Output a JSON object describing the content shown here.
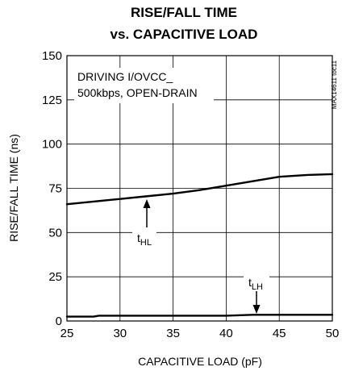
{
  "chart_data": {
    "type": "line",
    "title": "RISE/FALL TIME",
    "subtitle": "vs. CAPACITIVE LOAD",
    "xlabel": "CAPACITIVE LOAD (pF)",
    "ylabel": "RISE/FALL TIME (ns)",
    "xlim": [
      25,
      50
    ],
    "ylim": [
      0,
      150
    ],
    "xticks": [
      "25",
      "30",
      "35",
      "40",
      "45",
      "50"
    ],
    "yticks": [
      "0",
      "25",
      "50",
      "75",
      "100",
      "125",
      "150"
    ],
    "grid": true,
    "annotation_lines": [
      "DRIVING I/OVCC_",
      "500kbps, OPEN-DRAIN"
    ],
    "figure_code": "MAX14611 toc11",
    "series": [
      {
        "name": "tHL",
        "label_main": "t",
        "label_sub": "HL",
        "x": [
          25,
          27.5,
          30,
          32.5,
          35,
          37.5,
          40,
          42.5,
          45,
          47.5,
          50
        ],
        "values": [
          66,
          67.5,
          69,
          70.5,
          72,
          74,
          76.5,
          79,
          81.5,
          82.5,
          83
        ]
      },
      {
        "name": "tLH",
        "label_main": "t",
        "label_sub": "LH",
        "x": [
          25,
          27.5,
          28,
          30,
          35,
          40,
          42.5,
          45,
          50
        ],
        "values": [
          2.5,
          2.5,
          3,
          3,
          3,
          3,
          3.5,
          3.5,
          3.5
        ]
      }
    ]
  }
}
